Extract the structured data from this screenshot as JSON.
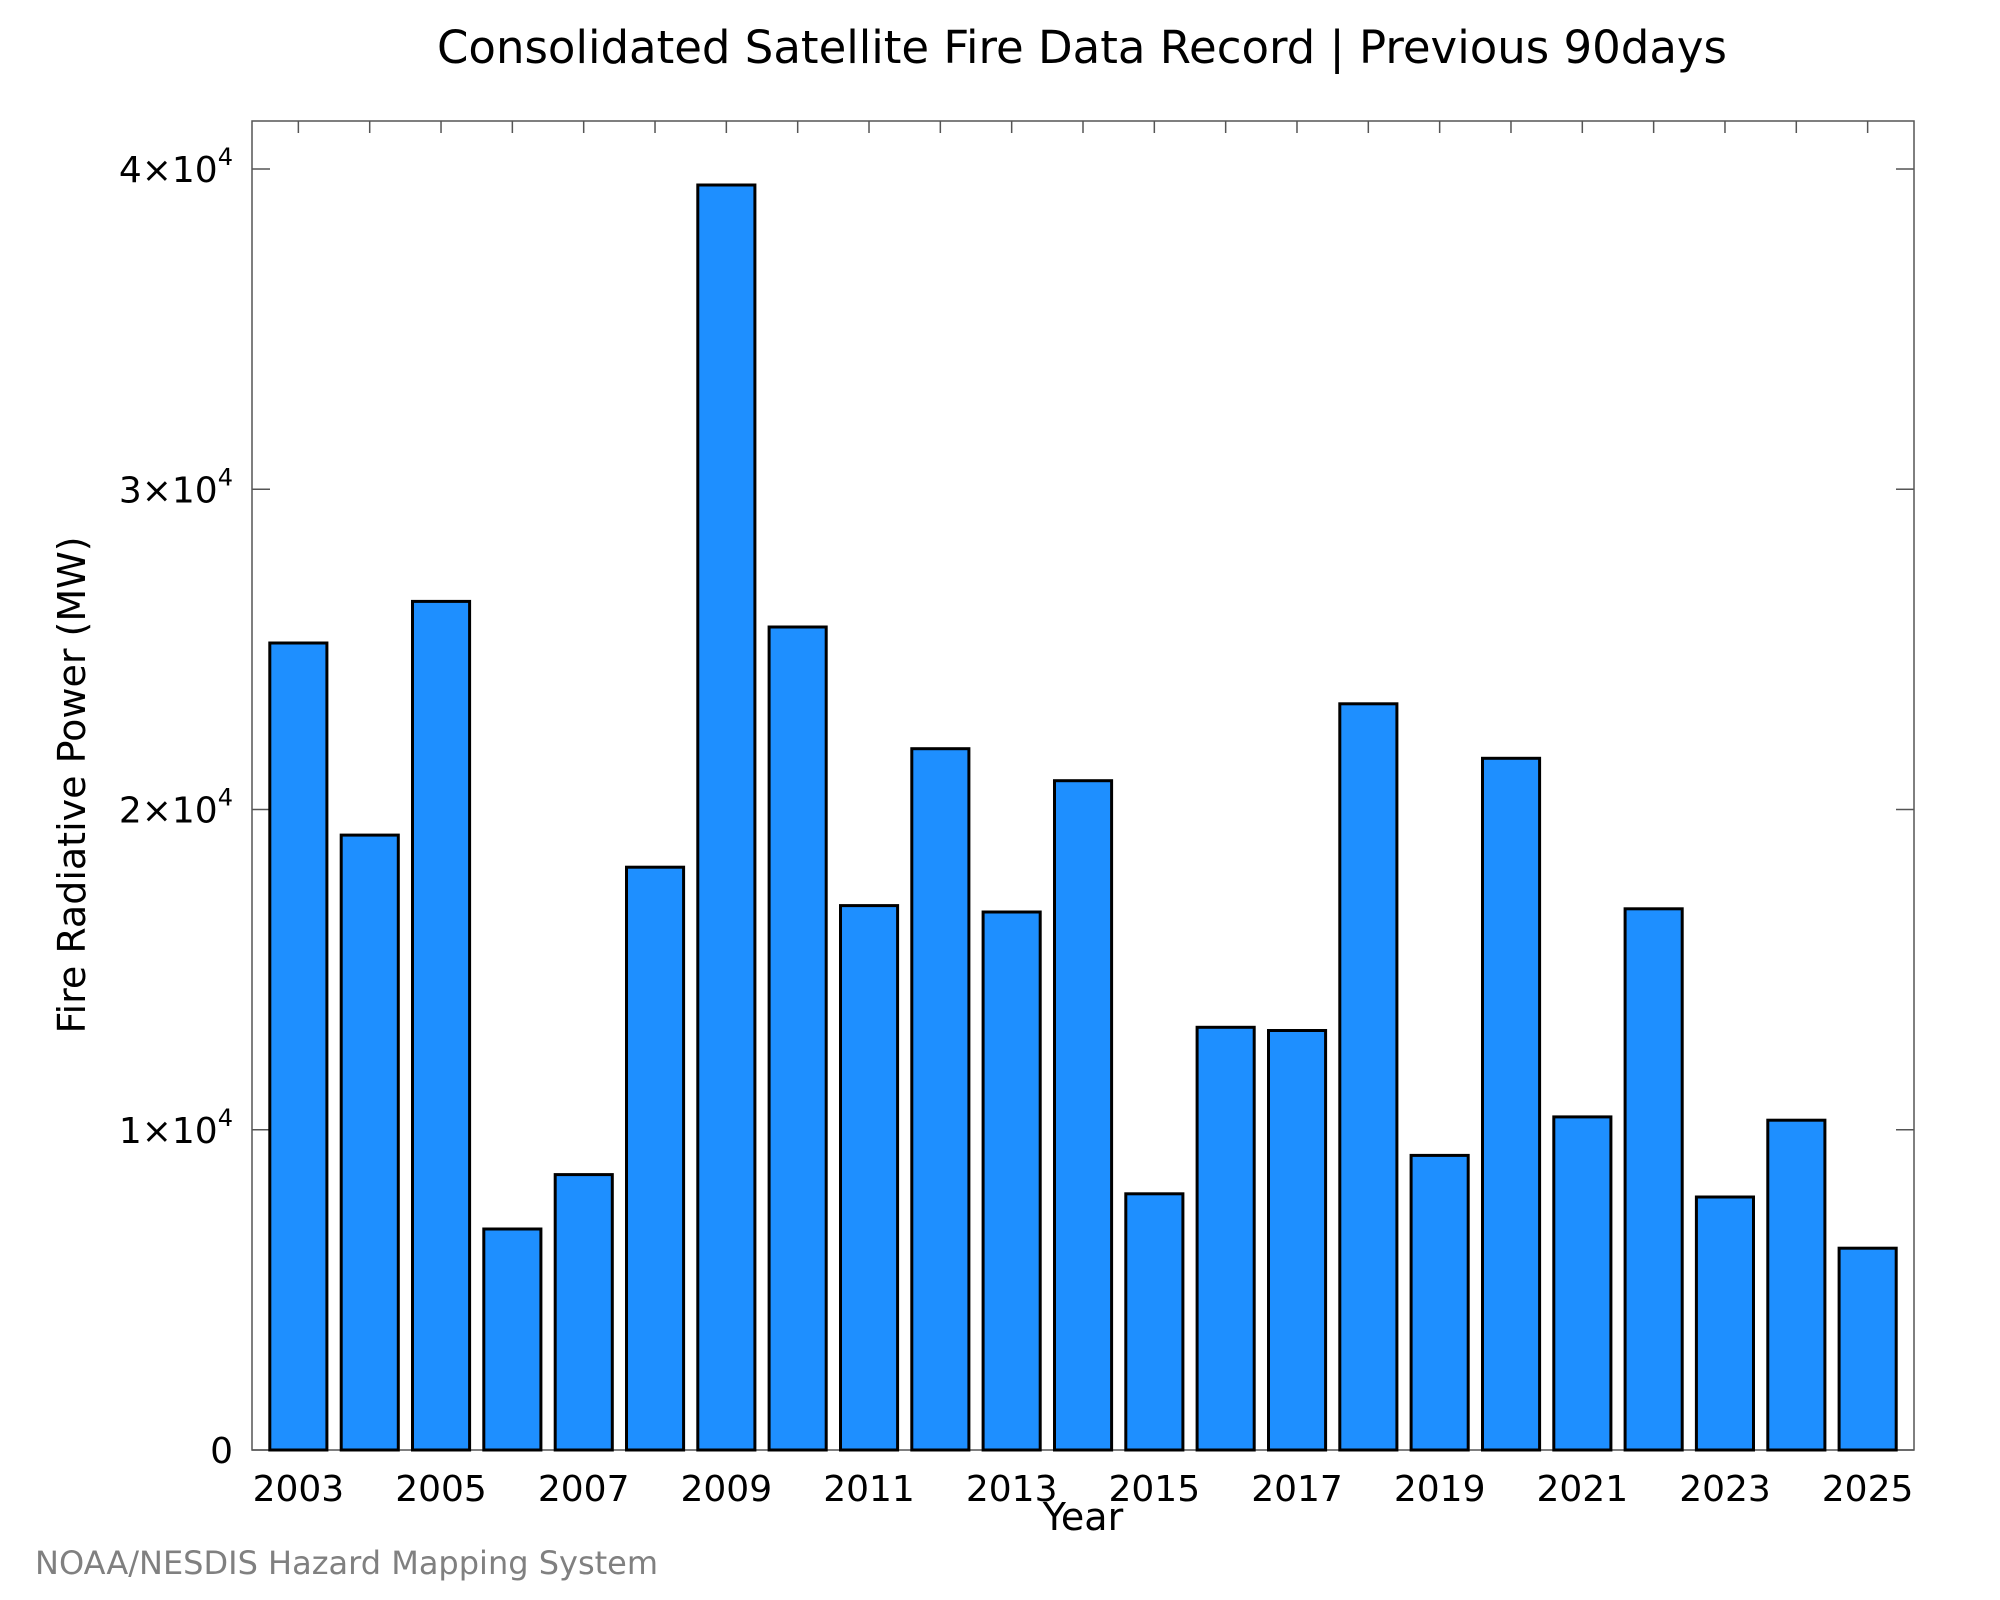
{
  "chart_data": {
    "type": "bar",
    "title": "Consolidated Satellite Fire Data Record | Previous 90days",
    "xlabel": "Year",
    "ylabel": "Fire Radiative Power (MW)",
    "ylim": [
      0,
      41500
    ],
    "xlim": [
      2002.35,
      2025.65
    ],
    "x_tick_labels": [
      "2003",
      "2005",
      "2007",
      "2009",
      "2011",
      "2013",
      "2015",
      "2017",
      "2019",
      "2021",
      "2023",
      "2025"
    ],
    "y_tick_labels": [
      {
        "value": 0,
        "mantissa": "0",
        "exponent": ""
      },
      {
        "value": 10000,
        "mantissa": "1×10",
        "exponent": "4"
      },
      {
        "value": 20000,
        "mantissa": "2×10",
        "exponent": "4"
      },
      {
        "value": 30000,
        "mantissa": "3×10",
        "exponent": "4"
      },
      {
        "value": 40000,
        "mantissa": "4×10",
        "exponent": "4"
      }
    ],
    "categories": [
      2003,
      2004,
      2005,
      2006,
      2007,
      2008,
      2009,
      2010,
      2011,
      2012,
      2013,
      2014,
      2015,
      2016,
      2017,
      2018,
      2019,
      2020,
      2021,
      2022,
      2023,
      2024,
      2025
    ],
    "values": [
      25200,
      19200,
      26500,
      6900,
      8600,
      18200,
      39500,
      25700,
      17000,
      21900,
      16800,
      20900,
      8000,
      13200,
      13100,
      23300,
      9200,
      21600,
      10400,
      16900,
      7900,
      10300,
      6300
    ],
    "bar_color": "#1e8fff",
    "grid": false,
    "credit": "NOAA/NESDIS Hazard Mapping System"
  }
}
